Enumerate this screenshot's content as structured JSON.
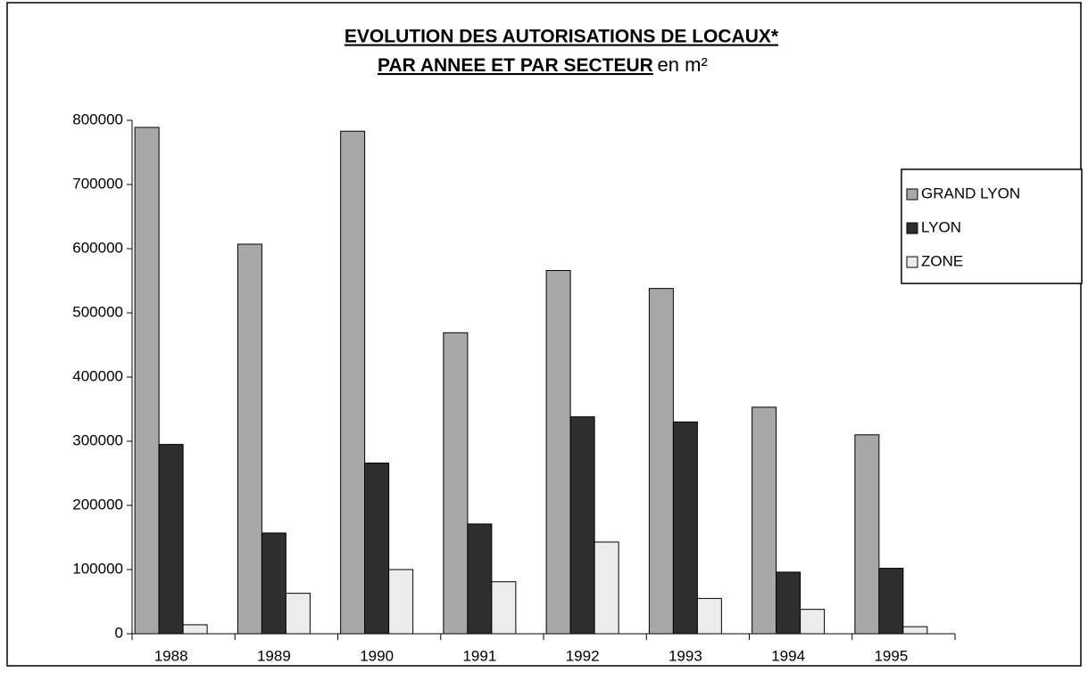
{
  "chart_data": {
    "type": "bar",
    "title": [
      "EVOLUTION DES AUTORISATIONS DE LOCAUX*",
      "PAR ANNEE ET PAR SECTEUR"
    ],
    "title_suffix": "en m²",
    "categories": [
      "1988",
      "1989",
      "1990",
      "1991",
      "1992",
      "1993",
      "1994",
      "1995"
    ],
    "series": [
      {
        "name": "GRAND LYON",
        "color": "#a8a8a8",
        "values": [
          789000,
          607000,
          783000,
          469000,
          566000,
          538000,
          353000,
          310000
        ]
      },
      {
        "name": "LYON",
        "color": "#2e2e2e",
        "values": [
          295000,
          157000,
          266000,
          171000,
          338000,
          330000,
          96000,
          102000
        ]
      },
      {
        "name": "ZONE",
        "color": "#ececec",
        "values": [
          14000,
          63000,
          100000,
          81000,
          143000,
          55000,
          38000,
          11000
        ]
      }
    ],
    "ylim": [
      0,
      800000
    ],
    "yticks": [
      0,
      100000,
      200000,
      300000,
      400000,
      500000,
      600000,
      700000,
      800000
    ],
    "legend": "right"
  }
}
